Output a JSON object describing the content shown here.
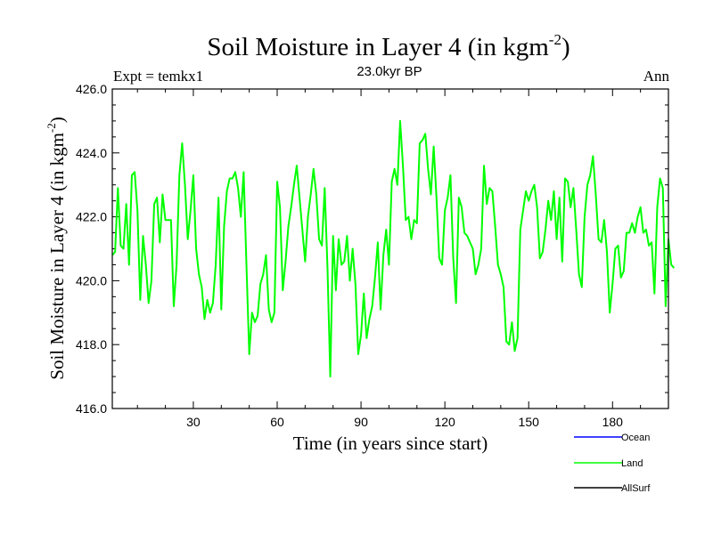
{
  "chart_data": {
    "type": "line",
    "title": "Soil Moisture in Layer 4 (in kgm",
    "title_superscript": "-2",
    "title_close": ")",
    "subtitle": "23.0kyr BP",
    "left_label": "Expt = temkx1",
    "right_label": "Ann",
    "xlabel": "Time (in years since start)",
    "ylabel": "Soil Moisture in Layer 4 (in kgm",
    "ylabel_superscript": "-2",
    "ylabel_close": ")",
    "xlim": [
      1,
      200
    ],
    "ylim": [
      416.0,
      426.0
    ],
    "x_ticks": [
      30,
      60,
      90,
      120,
      150,
      180
    ],
    "x_tick_labels": [
      "30",
      "60",
      "90",
      "120",
      "150",
      "180"
    ],
    "y_ticks": [
      416,
      418,
      420,
      422,
      424,
      426
    ],
    "y_tick_labels": [
      "416.0",
      "418.0",
      "420.0",
      "422.0",
      "424.0",
      "426.0"
    ],
    "legend": [
      {
        "name": "Ocean",
        "color": "#0000ff"
      },
      {
        "name": "Land",
        "color": "#00ff00"
      },
      {
        "name": "AllSurf",
        "color": "#000000"
      }
    ],
    "series": [
      {
        "name": "Land",
        "color": "#00ff00",
        "x_start": 1,
        "x_step": 1,
        "values": [
          420.8,
          420.9,
          422.9,
          421.1,
          421.0,
          422.4,
          420.5,
          423.3,
          423.4,
          422.2,
          419.4,
          421.4,
          420.5,
          419.3,
          420.0,
          422.4,
          422.6,
          421.2,
          422.7,
          421.9,
          421.9,
          421.9,
          419.2,
          420.5,
          423.3,
          424.3,
          423.0,
          421.3,
          422.2,
          423.3,
          421.0,
          420.2,
          419.8,
          418.8,
          419.4,
          419.0,
          419.3,
          420.5,
          422.6,
          419.1,
          421.7,
          422.8,
          423.2,
          423.2,
          423.4,
          422.9,
          422.0,
          423.4,
          420.5,
          417.7,
          419.0,
          418.7,
          418.9,
          419.9,
          420.2,
          420.8,
          419.1,
          418.7,
          419.0,
          423.1,
          422.3,
          419.7,
          420.6,
          421.7,
          422.3,
          423.0,
          423.6,
          422.6,
          421.6,
          420.6,
          422.0,
          422.7,
          423.5,
          422.7,
          421.3,
          421.1,
          422.9,
          420.4,
          417.0,
          421.4,
          419.7,
          421.3,
          420.5,
          420.6,
          421.4,
          420.0,
          421.0,
          419.9,
          417.7,
          418.3,
          419.6,
          418.2,
          418.8,
          419.2,
          420.1,
          421.2,
          419.1,
          420.8,
          421.6,
          420.5,
          423.1,
          423.5,
          423.0,
          425.0,
          423.6,
          421.9,
          422.0,
          421.3,
          421.9,
          421.8,
          424.3,
          424.4,
          424.6,
          423.5,
          422.7,
          424.2,
          422.6,
          420.7,
          420.5,
          422.2,
          422.6,
          423.3,
          420.7,
          419.3,
          422.6,
          422.3,
          421.5,
          421.4,
          421.2,
          421.0,
          420.2,
          420.5,
          421.0,
          423.6,
          422.4,
          422.9,
          422.8,
          421.7,
          420.5,
          420.2,
          419.8,
          418.1,
          418.0,
          418.7,
          417.8,
          418.2,
          421.6,
          422.2,
          422.8,
          422.5,
          422.8,
          423.0,
          422.3,
          420.7,
          420.9,
          421.6,
          422.5,
          421.9,
          422.8,
          421.3,
          422.6,
          420.6,
          423.2,
          423.1,
          422.3,
          422.9,
          421.6,
          420.2,
          419.8,
          422.0,
          423.0,
          423.3,
          423.9,
          422.7,
          421.3,
          421.2,
          421.9,
          420.9,
          419.0,
          419.9,
          421.0,
          421.1,
          420.1,
          420.3,
          421.5,
          421.5,
          421.8,
          421.5,
          422.0,
          422.3,
          421.5,
          421.6,
          421.1,
          421.2,
          419.6,
          422.3,
          423.2,
          422.9,
          419.2,
          421.3,
          420.5,
          420.4
        ]
      }
    ]
  }
}
